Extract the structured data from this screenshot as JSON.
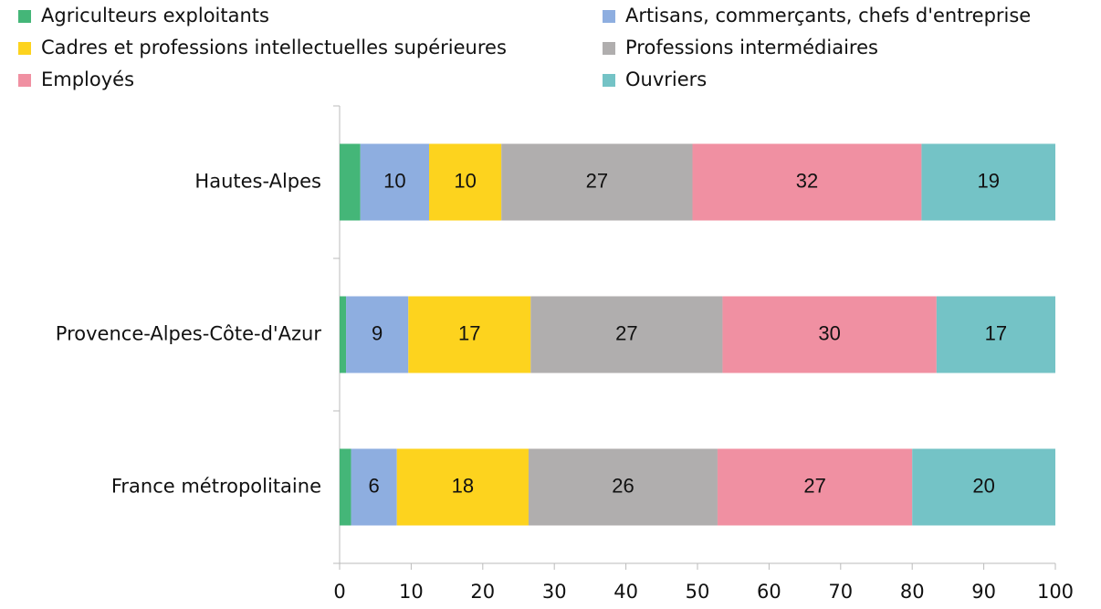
{
  "chart_data": {
    "type": "stacked-bar-horizontal",
    "categories": [
      "Hautes-Alpes",
      "Provence-Alpes-Côte-d'Azur",
      "France métropolitaine"
    ],
    "series": [
      {
        "name": "Agriculteurs exploitants",
        "color": "#44b678",
        "values": [
          2.9,
          0.9,
          1.6
        ]
      },
      {
        "name": "Artisans, commerçants, chefs d'entreprise",
        "color": "#8eaee0",
        "values": [
          9.6,
          8.7,
          6.4
        ],
        "value_labels": [
          "10",
          "9",
          "6"
        ]
      },
      {
        "name": "Cadres et professions intellectuelles supérieures",
        "color": "#fdd31e",
        "values": [
          10.1,
          17.1,
          18.4
        ],
        "value_labels": [
          "10",
          "17",
          "18"
        ]
      },
      {
        "name": "Professions intermédiaires",
        "color": "#b0aeae",
        "values": [
          26.7,
          26.8,
          26.4
        ],
        "value_labels": [
          "27",
          "27",
          "26"
        ]
      },
      {
        "name": "Employés",
        "color": "#f090a2",
        "values": [
          32.0,
          29.9,
          27.2
        ],
        "value_labels": [
          "32",
          "30",
          "27"
        ]
      },
      {
        "name": "Ouvriers",
        "color": "#74c3c6",
        "values": [
          18.7,
          16.6,
          20.0
        ],
        "value_labels": [
          "19",
          "17",
          "20"
        ]
      }
    ],
    "xlim": [
      0,
      100
    ],
    "xticks": [
      0,
      10,
      20,
      30,
      40,
      50,
      60,
      70,
      80,
      90,
      100
    ]
  }
}
